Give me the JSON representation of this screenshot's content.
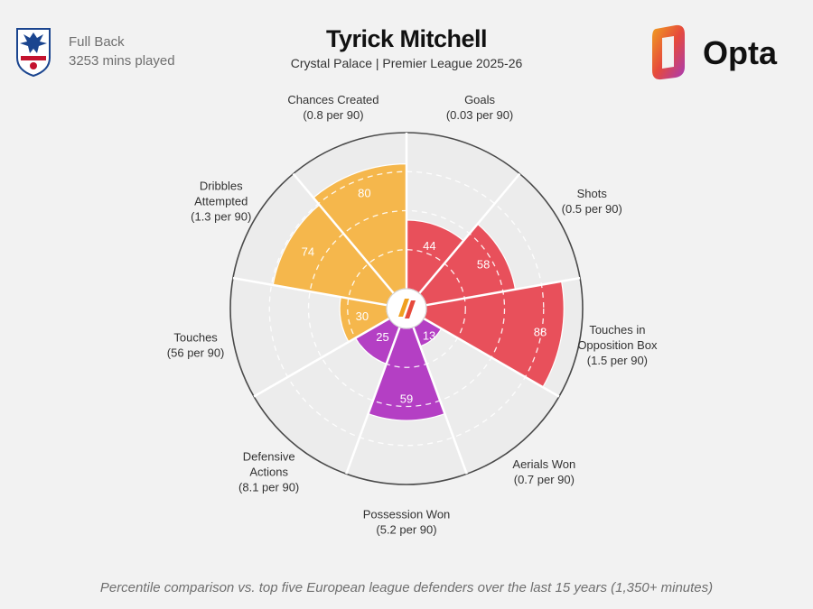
{
  "header": {
    "position": "Full Back",
    "minutes": "3253 mins played",
    "title": "Tyrick Mitchell",
    "subtitle": "Crystal Palace | Premier League 2025-26",
    "brand": "Opta"
  },
  "footnote": "Percentile comparison vs. top five European league defenders over the last 15 years (1,350+ minutes)",
  "colors": {
    "attacking": "#e8505b",
    "possession": "#f5b74c",
    "defending": "#b43fc4",
    "background": "#f2f2f2"
  },
  "icons": [
    "crystal-palace-crest",
    "opta-logo",
    "opta-center-mark"
  ],
  "chart_data": {
    "type": "radial-bar",
    "scale": [
      0,
      100
    ],
    "grid": true,
    "categories": [
      {
        "name": "Goals",
        "label_lines": [
          "Goals",
          "(0.03 per 90)"
        ],
        "value": 44,
        "group": "attacking"
      },
      {
        "name": "Shots",
        "label_lines": [
          "Shots",
          "(0.5 per 90)"
        ],
        "value": 58,
        "group": "attacking"
      },
      {
        "name": "Touches in Opposition Box",
        "label_lines": [
          "Touches in",
          "Opposition Box",
          "(1.5 per 90)"
        ],
        "value": 88,
        "group": "attacking"
      },
      {
        "name": "Aerials Won",
        "label_lines": [
          "Aerials Won",
          "(0.7 per 90)"
        ],
        "value": 13,
        "group": "defending"
      },
      {
        "name": "Possession Won",
        "label_lines": [
          "Possession Won",
          "(5.2 per 90)"
        ],
        "value": 59,
        "group": "defending"
      },
      {
        "name": "Defensive Actions",
        "label_lines": [
          "Defensive",
          "Actions",
          "(8.1 per 90)"
        ],
        "value": 25,
        "group": "defending"
      },
      {
        "name": "Touches",
        "label_lines": [
          "Touches",
          "(56 per 90)"
        ],
        "value": 30,
        "group": "possession"
      },
      {
        "name": "Dribbles Attempted",
        "label_lines": [
          "Dribbles",
          "Attempted",
          "(1.3 per 90)"
        ],
        "value": 74,
        "group": "possession"
      },
      {
        "name": "Chances Created",
        "label_lines": [
          "Chances Created",
          "(0.8 per 90)"
        ],
        "value": 80,
        "group": "possession"
      }
    ]
  }
}
